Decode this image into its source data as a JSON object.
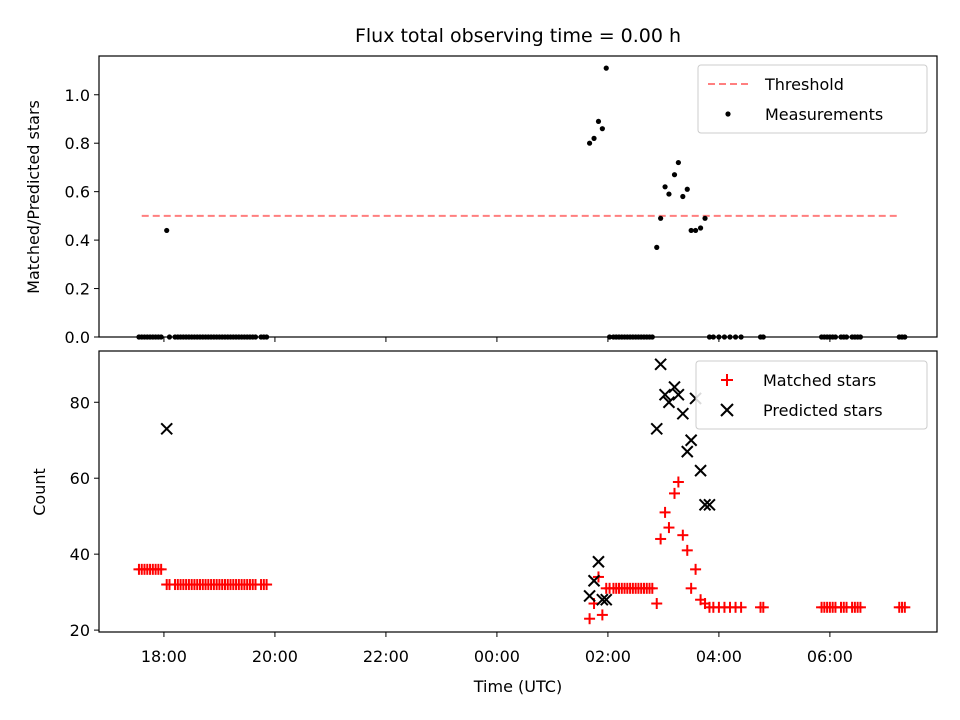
{
  "chart_data": [
    {
      "type": "scatter",
      "title": "Flux total observing time = 0.00 h",
      "ylabel": "Matched/Predicted stars",
      "xlim": [
        16.83,
        31.93
      ],
      "ylim": [
        0,
        1.16
      ],
      "yticks": [
        0.0,
        0.2,
        0.4,
        0.6,
        0.8,
        1.0
      ],
      "ytick_labels": [
        "0.0",
        "0.2",
        "0.4",
        "0.6",
        "0.8",
        "1.0"
      ],
      "legend_position": "upper right",
      "threshold": {
        "name": "Threshold",
        "value": 0.5,
        "x_range": [
          17.6,
          31.25
        ],
        "color": "#ff7f7f"
      },
      "measurements": {
        "name": "Measurements",
        "color": "#000000",
        "x": [
          17.55,
          17.6,
          17.65,
          17.7,
          17.75,
          17.8,
          17.85,
          17.9,
          17.95,
          18.05,
          18.1,
          18.2,
          18.25,
          18.3,
          18.35,
          18.4,
          18.45,
          18.5,
          18.55,
          18.6,
          18.65,
          18.7,
          18.75,
          18.8,
          18.85,
          18.9,
          18.95,
          19.0,
          19.05,
          19.1,
          19.15,
          19.2,
          19.25,
          19.3,
          19.35,
          19.4,
          19.45,
          19.5,
          19.55,
          19.6,
          19.65,
          19.75,
          19.8,
          19.85,
          25.67,
          25.75,
          25.83,
          25.9,
          25.97,
          26.03,
          26.1,
          26.15,
          26.2,
          26.25,
          26.3,
          26.35,
          26.4,
          26.45,
          26.5,
          26.55,
          26.6,
          26.65,
          26.7,
          26.75,
          26.8,
          26.88,
          26.95,
          27.03,
          27.1,
          27.2,
          27.27,
          27.35,
          27.43,
          27.5,
          27.58,
          27.67,
          27.75,
          27.83,
          27.9,
          28.0,
          28.1,
          28.2,
          28.3,
          28.4,
          28.75,
          28.8,
          29.85,
          29.9,
          29.95,
          30.0,
          30.05,
          30.1,
          30.2,
          30.25,
          30.3,
          30.4,
          30.45,
          30.5,
          30.55,
          31.25,
          31.3,
          31.35
        ],
        "y": [
          0,
          0,
          0,
          0,
          0,
          0,
          0,
          0,
          0,
          0.44,
          0,
          0,
          0,
          0,
          0,
          0,
          0,
          0,
          0,
          0,
          0,
          0,
          0,
          0,
          0,
          0,
          0,
          0,
          0,
          0,
          0,
          0,
          0,
          0,
          0,
          0,
          0,
          0,
          0,
          0,
          0,
          0,
          0,
          0,
          0.8,
          0.82,
          0.89,
          0.86,
          1.11,
          0,
          0,
          0,
          0,
          0,
          0,
          0,
          0,
          0,
          0,
          0,
          0,
          0,
          0,
          0,
          0,
          0.37,
          0.49,
          0.62,
          0.59,
          0.67,
          0.72,
          0.58,
          0.61,
          0.44,
          0.44,
          0.45,
          0.49,
          0,
          0,
          0,
          0,
          0,
          0,
          0,
          0,
          0,
          0,
          0,
          0,
          0,
          0,
          0,
          0,
          0,
          0,
          0,
          0,
          0,
          0,
          0,
          0,
          0
        ]
      }
    },
    {
      "type": "scatter",
      "xlabel": "Time (UTC)",
      "ylabel": "Count",
      "xlim": [
        16.83,
        31.93
      ],
      "ylim": [
        19.5,
        93.5
      ],
      "yticks": [
        20,
        40,
        60,
        80
      ],
      "ytick_labels": [
        "20",
        "40",
        "60",
        "80"
      ],
      "xticks": [
        18,
        20,
        22,
        24,
        26,
        28,
        30
      ],
      "xtick_labels": [
        "18:00",
        "20:00",
        "22:00",
        "00:00",
        "02:00",
        "04:00",
        "06:00"
      ],
      "legend_position": "upper right",
      "series": [
        {
          "name": "Matched stars",
          "marker": "plus",
          "color": "#ff0000",
          "x": [
            17.55,
            17.6,
            17.65,
            17.7,
            17.75,
            17.8,
            17.85,
            17.9,
            17.95,
            18.05,
            18.1,
            18.2,
            18.25,
            18.3,
            18.35,
            18.4,
            18.45,
            18.5,
            18.55,
            18.6,
            18.65,
            18.7,
            18.75,
            18.8,
            18.85,
            18.9,
            18.95,
            19.0,
            19.05,
            19.1,
            19.15,
            19.2,
            19.25,
            19.3,
            19.35,
            19.4,
            19.45,
            19.5,
            19.55,
            19.6,
            19.65,
            19.75,
            19.8,
            19.85,
            25.67,
            25.75,
            25.83,
            25.9,
            25.97,
            26.03,
            26.1,
            26.15,
            26.2,
            26.25,
            26.3,
            26.35,
            26.4,
            26.45,
            26.5,
            26.55,
            26.6,
            26.65,
            26.7,
            26.75,
            26.8,
            26.88,
            26.95,
            27.03,
            27.1,
            27.2,
            27.27,
            27.35,
            27.43,
            27.5,
            27.58,
            27.67,
            27.75,
            27.83,
            27.9,
            28.0,
            28.1,
            28.2,
            28.3,
            28.4,
            28.75,
            28.8,
            29.85,
            29.9,
            29.95,
            30.0,
            30.05,
            30.1,
            30.2,
            30.25,
            30.3,
            30.4,
            30.45,
            30.5,
            30.55,
            31.25,
            31.3,
            31.35
          ],
          "y": [
            36,
            36,
            36,
            36,
            36,
            36,
            36,
            36,
            36,
            32,
            32,
            32,
            32,
            32,
            32,
            32,
            32,
            32,
            32,
            32,
            32,
            32,
            32,
            32,
            32,
            32,
            32,
            32,
            32,
            32,
            32,
            32,
            32,
            32,
            32,
            32,
            32,
            32,
            32,
            32,
            32,
            32,
            32,
            32,
            23,
            27,
            34,
            24,
            31,
            31,
            31,
            31,
            31,
            31,
            31,
            31,
            31,
            31,
            31,
            31,
            31,
            31,
            31,
            31,
            31,
            27,
            44,
            51,
            47,
            56,
            59,
            45,
            41,
            31,
            36,
            28,
            27,
            26,
            26,
            26,
            26,
            26,
            26,
            26,
            26,
            26,
            26,
            26,
            26,
            26,
            26,
            26,
            26,
            26,
            26,
            26,
            26,
            26,
            26,
            26,
            26,
            26
          ]
        },
        {
          "name": "Predicted stars",
          "marker": "x",
          "color": "#000000",
          "x": [
            18.05,
            25.67,
            25.75,
            25.83,
            25.9,
            25.97,
            26.88,
            26.95,
            27.03,
            27.1,
            27.2,
            27.27,
            27.35,
            27.43,
            27.5,
            27.58,
            27.67,
            27.75,
            27.83
          ],
          "y": [
            73,
            29,
            33,
            38,
            28,
            28,
            73,
            90,
            82,
            80,
            84,
            82,
            77,
            67,
            70,
            81,
            62,
            53,
            53
          ]
        }
      ]
    }
  ]
}
